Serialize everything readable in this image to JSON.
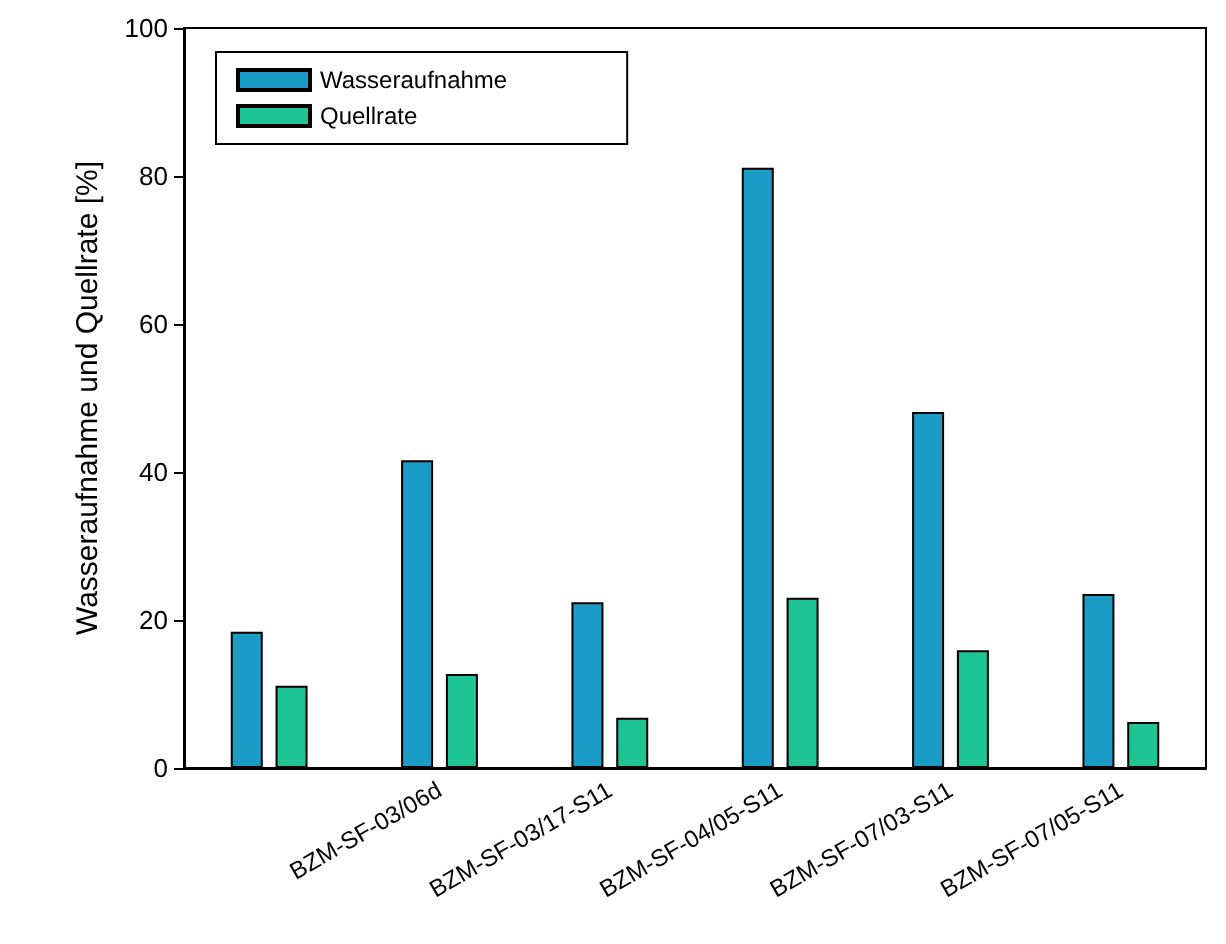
{
  "chart_data": {
    "type": "bar",
    "ylabel": "Wasseraufnahme und Quellrate [%]",
    "categories": [
      null,
      "BZM-SF-03/06d",
      "BZM-SF-03/17-S11",
      "BZM-SF-04/05-S11",
      "BZM-SF-07/03-S11",
      "BZM-SF-07/05-S11"
    ],
    "series": [
      {
        "name": "Wasseraufnahme",
        "color": "#1b9cc6",
        "values": [
          18.4,
          41.6,
          22.4,
          81.1,
          48.1,
          23.5
        ]
      },
      {
        "name": "Quellrate",
        "color": "#1ec494",
        "values": [
          11.1,
          12.7,
          6.8,
          23.0,
          15.9,
          6.2
        ]
      }
    ],
    "ylim": [
      0,
      100
    ],
    "yticks": [
      0,
      20,
      40,
      60,
      80,
      100
    ],
    "grid": false,
    "legend": "top left"
  }
}
